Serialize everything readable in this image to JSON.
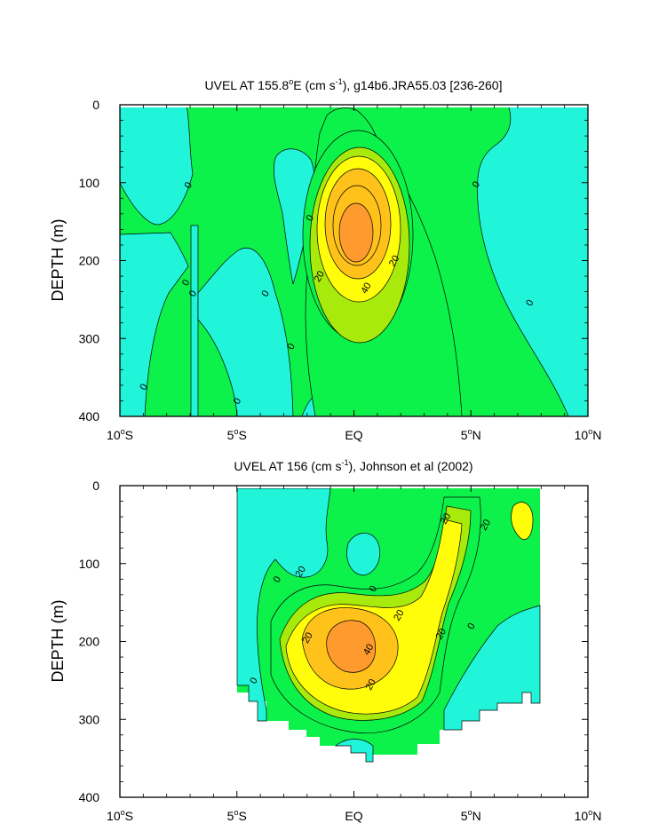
{
  "chart_data": [
    {
      "type": "contour",
      "title": {
        "pre": "UVEL AT 155.8",
        "deg": "o",
        "mid": "E (cm s",
        "sup": "-1",
        "post": "), g14b6.JRA55.03 [236-260]"
      },
      "ylabel": "DEPTH (m)",
      "xlim": [
        -10,
        10
      ],
      "ylim": [
        400,
        0
      ],
      "y_ticks": [
        0,
        100,
        200,
        300,
        400
      ],
      "x_ticks": [
        {
          "value": -10,
          "num": "10",
          "deg": "o",
          "hem": "S"
        },
        {
          "value": -5,
          "num": "5",
          "deg": "o",
          "hem": "S"
        },
        {
          "value": 0,
          "num": "EQ",
          "deg": "",
          "hem": ""
        },
        {
          "value": 5,
          "num": "5",
          "deg": "o",
          "hem": "N"
        },
        {
          "value": 10,
          "num": "10",
          "deg": "o",
          "hem": "N"
        }
      ],
      "levels": [
        -20,
        0,
        20,
        30,
        40,
        50
      ],
      "colors": {
        "neg": "#21f5d9",
        "zero_20": "#0cf24a",
        "l20": "#a8ea0c",
        "l30": "#fffd0a",
        "l40": "#ffc21a",
        "l50": "#ff9b2e"
      },
      "core": {
        "lat": 0.0,
        "depth": 170,
        "max_speed": 55
      },
      "contour_labels": [
        {
          "text": "0",
          "lat": -7.1,
          "depth": 103
        },
        {
          "text": "0",
          "lat": -7.2,
          "depth": 228
        },
        {
          "text": "0",
          "lat": -6.9,
          "depth": 242
        },
        {
          "text": "0",
          "lat": -9.0,
          "depth": 362
        },
        {
          "text": "0",
          "lat": -5.0,
          "depth": 380
        },
        {
          "text": "0",
          "lat": -3.8,
          "depth": 242
        },
        {
          "text": "0",
          "lat": -2.7,
          "depth": 310
        },
        {
          "text": "0",
          "lat": -1.9,
          "depth": 145
        },
        {
          "text": "0",
          "lat": 5.2,
          "depth": 102
        },
        {
          "text": "0",
          "lat": 7.5,
          "depth": 254
        },
        {
          "text": "20",
          "lat": -1.5,
          "depth": 220
        },
        {
          "text": "20",
          "lat": 1.7,
          "depth": 200
        },
        {
          "text": "40",
          "lat": 0.5,
          "depth": 235
        }
      ]
    },
    {
      "type": "contour",
      "title": {
        "pre": "UVEL AT 156 (cm s",
        "deg": "",
        "mid": "",
        "sup": "-1",
        "post": "), Johnson et al (2002)"
      },
      "ylabel": "DEPTH (m)",
      "xlim": [
        -10,
        10
      ],
      "ylim": [
        400,
        0
      ],
      "y_ticks": [
        0,
        100,
        200,
        300,
        400
      ],
      "x_ticks": [
        {
          "value": -10,
          "num": "10",
          "deg": "o",
          "hem": "S"
        },
        {
          "value": -5,
          "num": "5",
          "deg": "o",
          "hem": "S"
        },
        {
          "value": 0,
          "num": "EQ",
          "deg": "",
          "hem": ""
        },
        {
          "value": 5,
          "num": "5",
          "deg": "o",
          "hem": "N"
        },
        {
          "value": 10,
          "num": "10",
          "deg": "o",
          "hem": "N"
        }
      ],
      "data_extent": {
        "lat": [
          -5.0,
          8.0
        ]
      },
      "levels": [
        -20,
        0,
        20,
        30,
        40,
        50
      ],
      "core": {
        "lat": -0.2,
        "depth": 205,
        "max_speed": 50
      },
      "contour_labels": [
        {
          "text": "20",
          "lat": -2.3,
          "depth": 110
        },
        {
          "text": "0",
          "lat": -3.3,
          "depth": 120
        },
        {
          "text": "0",
          "lat": 0.8,
          "depth": 132
        },
        {
          "text": "20",
          "lat": 1.9,
          "depth": 166
        },
        {
          "text": "20",
          "lat": -2.0,
          "depth": 195
        },
        {
          "text": "40",
          "lat": 0.6,
          "depth": 210
        },
        {
          "text": "20",
          "lat": 0.7,
          "depth": 255
        },
        {
          "text": "20",
          "lat": 3.7,
          "depth": 190
        },
        {
          "text": "0",
          "lat": 5.0,
          "depth": 180
        },
        {
          "text": "20",
          "lat": 3.9,
          "depth": 42
        },
        {
          "text": "20",
          "lat": 5.6,
          "depth": 50
        },
        {
          "text": "0",
          "lat": -4.3,
          "depth": 250
        }
      ]
    }
  ]
}
